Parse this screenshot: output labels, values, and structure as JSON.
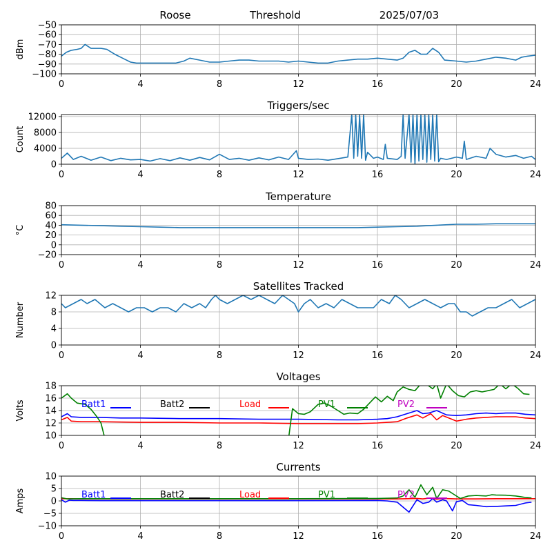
{
  "header": {
    "station": "Roose",
    "mode": "Threshold",
    "date": "2025/07/03"
  },
  "colors": {
    "series": "#1f77b4",
    "grid": "#b0b0b0",
    "batt1": "#0000ff",
    "batt2": "#000000",
    "load": "#ff0000",
    "pv1": "#008000",
    "pv2": "#bf00bf"
  },
  "chart_data": [
    {
      "id": "signal",
      "type": "line",
      "title": "",
      "xlabel": "",
      "ylabel": "dBm",
      "xlim": [
        0,
        24
      ],
      "ylim": [
        -100,
        -50
      ],
      "xticks": [
        "0",
        "4",
        "8",
        "12",
        "16",
        "20",
        "24"
      ],
      "yticks": [
        "−100",
        "−90",
        "−80",
        "−70",
        "−60",
        "−50"
      ],
      "grid": true,
      "series": [
        {
          "color": "#1f77b4",
          "x": [
            0,
            0.25,
            0.5,
            0.8,
            1.0,
            1.2,
            1.5,
            2.0,
            2.3,
            2.7,
            3.1,
            3.5,
            3.8,
            4.2,
            5.0,
            5.8,
            6.2,
            6.5,
            7.0,
            7.5,
            8.0,
            8.5,
            9.0,
            9.5,
            10.0,
            10.5,
            11.0,
            11.5,
            12.0,
            12.5,
            13.0,
            13.5,
            14.0,
            14.5,
            15.0,
            15.5,
            16.0,
            16.5,
            17.0,
            17.3,
            17.6,
            17.9,
            18.2,
            18.5,
            18.8,
            19.1,
            19.4,
            20.0,
            20.5,
            21.0,
            21.5,
            22.0,
            22.5,
            23.0,
            23.3,
            23.6,
            24.0
          ],
          "y": [
            -82,
            -78,
            -76,
            -75,
            -74,
            -70,
            -74,
            -74,
            -75,
            -80,
            -84,
            -88,
            -89,
            -89,
            -89,
            -89,
            -87,
            -84,
            -86,
            -88,
            -88,
            -87,
            -86,
            -86,
            -87,
            -87,
            -87,
            -88,
            -87,
            -88,
            -89,
            -89,
            -87,
            -86,
            -85,
            -85,
            -84,
            -85,
            -86,
            -84,
            -78,
            -76,
            -80,
            -80,
            -74,
            -78,
            -86,
            -87,
            -88,
            -87,
            -85,
            -83,
            -84,
            -86,
            -83,
            -82,
            -81
          ]
        }
      ]
    },
    {
      "id": "triggers",
      "type": "line",
      "title": "Triggers/sec",
      "xlabel": "",
      "ylabel": "Count",
      "xlim": [
        0,
        24
      ],
      "ylim": [
        0,
        12500
      ],
      "xticks": [
        "0",
        "4",
        "8",
        "12",
        "16",
        "20",
        "24"
      ],
      "yticks": [
        "0",
        "4000",
        "8000",
        "12000"
      ],
      "grid": true,
      "series": [
        {
          "color": "#1f77b4",
          "x": [
            0,
            0.3,
            0.6,
            1.0,
            1.5,
            2.0,
            2.5,
            3.0,
            3.5,
            4.0,
            4.5,
            5.0,
            5.5,
            6.0,
            6.5,
            7.0,
            7.5,
            8.0,
            8.5,
            9.0,
            9.5,
            10.0,
            10.5,
            11.0,
            11.5,
            11.9,
            12.0,
            12.5,
            13.0,
            13.5,
            14.0,
            14.5,
            14.7,
            14.8,
            14.9,
            15.0,
            15.1,
            15.2,
            15.3,
            15.4,
            15.5,
            15.8,
            16.0,
            16.3,
            16.4,
            16.5,
            17.0,
            17.2,
            17.3,
            17.4,
            17.6,
            17.7,
            17.8,
            17.9,
            18.0,
            18.1,
            18.2,
            18.3,
            18.4,
            18.5,
            18.6,
            18.7,
            18.8,
            18.9,
            19.0,
            19.1,
            19.2,
            19.5,
            20.0,
            20.3,
            20.4,
            20.5,
            21.0,
            21.5,
            21.7,
            22.0,
            22.5,
            23.0,
            23.4,
            23.8,
            24.0
          ],
          "y": [
            1500,
            2800,
            1200,
            2000,
            1000,
            1800,
            900,
            1500,
            1100,
            1200,
            800,
            1400,
            900,
            1600,
            1000,
            1700,
            1100,
            2500,
            1200,
            1500,
            1000,
            1600,
            1100,
            1800,
            1200,
            3400,
            1500,
            1200,
            1300,
            1000,
            1400,
            1800,
            12500,
            1500,
            12500,
            2000,
            12500,
            1500,
            12500,
            1000,
            3000,
            1500,
            1800,
            1200,
            5000,
            1500,
            1200,
            2000,
            12500,
            1500,
            12500,
            500,
            12500,
            0,
            12500,
            800,
            12500,
            1200,
            12500,
            500,
            12500,
            1200,
            12500,
            800,
            12500,
            600,
            1500,
            1200,
            1800,
            1500,
            5800,
            1200,
            2000,
            1500,
            4000,
            2500,
            1800,
            2200,
            1500,
            2000,
            1200
          ]
        }
      ]
    },
    {
      "id": "temperature",
      "type": "line",
      "title": "Temperature",
      "xlabel": "",
      "ylabel": "°C",
      "xlim": [
        0,
        24
      ],
      "ylim": [
        -20,
        80
      ],
      "xticks": [
        "0",
        "4",
        "8",
        "12",
        "16",
        "20",
        "24"
      ],
      "yticks": [
        "−20",
        "0",
        "20",
        "40",
        "60",
        "80"
      ],
      "grid": true,
      "series": [
        {
          "color": "#1f77b4",
          "x": [
            0,
            1,
            2,
            3,
            4,
            5,
            6,
            8,
            10,
            12,
            14,
            15,
            16,
            17,
            18,
            19,
            20,
            21,
            22,
            23,
            24
          ],
          "y": [
            41,
            40,
            39,
            38,
            37,
            36,
            35,
            35,
            35,
            35,
            35,
            35,
            36,
            37,
            38,
            40,
            42,
            42,
            43,
            43,
            43
          ]
        }
      ]
    },
    {
      "id": "satellites",
      "type": "line",
      "title": "Satellites Tracked",
      "xlabel": "",
      "ylabel": "Number",
      "xlim": [
        0,
        24
      ],
      "ylim": [
        0,
        12
      ],
      "xticks": [
        "0",
        "4",
        "8",
        "12",
        "16",
        "20",
        "24"
      ],
      "yticks": [
        "0",
        "4",
        "8",
        "12"
      ],
      "grid": true,
      "series": [
        {
          "color": "#1f77b4",
          "x": [
            0,
            0.2,
            0.6,
            1.0,
            1.3,
            1.7,
            2.2,
            2.6,
            3.0,
            3.4,
            3.8,
            4.2,
            4.6,
            5.0,
            5.4,
            5.8,
            6.2,
            6.6,
            7.0,
            7.3,
            7.6,
            7.8,
            8.0,
            8.4,
            8.8,
            9.2,
            9.6,
            10.0,
            10.4,
            10.8,
            11.2,
            11.5,
            11.8,
            12.0,
            12.3,
            12.6,
            13.0,
            13.4,
            13.8,
            14.2,
            14.6,
            15.0,
            15.4,
            15.8,
            16.2,
            16.6,
            16.9,
            17.2,
            17.6,
            18.0,
            18.4,
            18.8,
            19.2,
            19.6,
            19.9,
            20.2,
            20.5,
            20.8,
            21.2,
            21.6,
            22.0,
            22.4,
            22.8,
            23.2,
            23.6,
            24.0
          ],
          "y": [
            10,
            9,
            10,
            11,
            10,
            11,
            9,
            10,
            9,
            8,
            9,
            9,
            8,
            9,
            9,
            8,
            10,
            9,
            10,
            9,
            11,
            12,
            11,
            10,
            11,
            12,
            11,
            12,
            11,
            10,
            12,
            11,
            10,
            8,
            10,
            11,
            9,
            10,
            9,
            11,
            10,
            9,
            9,
            9,
            11,
            10,
            12,
            11,
            9,
            10,
            11,
            10,
            9,
            10,
            10,
            8,
            8,
            7,
            8,
            9,
            9,
            10,
            11,
            9,
            10,
            11
          ]
        }
      ]
    },
    {
      "id": "voltages",
      "type": "line",
      "title": "Voltages",
      "xlabel": "",
      "ylabel": "Volts",
      "xlim": [
        0,
        24
      ],
      "ylim": [
        10,
        18
      ],
      "xticks": [
        "0",
        "4",
        "8",
        "12",
        "16",
        "20",
        "24"
      ],
      "yticks": [
        "10",
        "12",
        "14",
        "16",
        "18"
      ],
      "grid": true,
      "legend": [
        "Batt1",
        "Batt2",
        "Load",
        "PV1",
        "PV2"
      ],
      "series": [
        {
          "name": "Batt1",
          "color": "#0000ff",
          "x": [
            0,
            0.3,
            0.5,
            1.0,
            2.0,
            3.0,
            4.0,
            6.0,
            8.0,
            10.0,
            12.0,
            14.0,
            15.0,
            16.0,
            16.5,
            17.0,
            17.5,
            18.0,
            18.3,
            18.6,
            19.0,
            19.5,
            20.0,
            20.5,
            21.0,
            21.5,
            22.0,
            22.5,
            23.0,
            23.5,
            24.0
          ],
          "y": [
            13.0,
            13.5,
            13.0,
            12.9,
            12.9,
            12.8,
            12.8,
            12.7,
            12.7,
            12.6,
            12.6,
            12.5,
            12.5,
            12.6,
            12.7,
            13.0,
            13.5,
            14.0,
            13.5,
            13.6,
            14.0,
            13.3,
            13.2,
            13.3,
            13.5,
            13.6,
            13.5,
            13.6,
            13.6,
            13.4,
            13.3
          ]
        },
        {
          "name": "Batt2",
          "color": "#000000",
          "x": [],
          "y": []
        },
        {
          "name": "Load",
          "color": "#ff0000",
          "x": [
            0,
            0.3,
            0.5,
            1.0,
            2.0,
            4.0,
            6.0,
            8.0,
            10.0,
            12.0,
            14.0,
            15.0,
            16.0,
            16.5,
            17.0,
            17.5,
            18.0,
            18.3,
            18.7,
            19.0,
            19.3,
            20.0,
            20.5,
            21.0,
            21.5,
            22.0,
            22.5,
            23.0,
            23.5,
            24.0
          ],
          "y": [
            12.5,
            12.9,
            12.3,
            12.2,
            12.2,
            12.1,
            12.1,
            12.0,
            12.0,
            11.9,
            11.9,
            11.9,
            12.0,
            12.1,
            12.2,
            12.8,
            13.3,
            12.8,
            13.5,
            12.5,
            13.2,
            12.3,
            12.6,
            12.8,
            12.9,
            13.0,
            13.0,
            13.0,
            12.8,
            12.7
          ]
        },
        {
          "name": "PV1",
          "color": "#008000",
          "x": [
            0,
            0.3,
            0.5,
            0.8,
            1.2,
            1.5,
            1.8,
            2.0,
            2.2,
            11.5,
            11.7,
            12.0,
            12.3,
            12.6,
            13.0,
            13.3,
            13.6,
            14.0,
            14.3,
            14.6,
            15.0,
            15.3,
            15.6,
            15.9,
            16.2,
            16.5,
            16.8,
            17.0,
            17.3,
            17.6,
            17.9,
            18.2,
            18.5,
            18.8,
            19.0,
            19.2,
            19.5,
            19.8,
            20.1,
            20.4,
            20.7,
            21.0,
            21.3,
            21.6,
            21.9,
            22.2,
            22.5,
            22.8,
            23.1,
            23.4,
            23.7
          ],
          "y": [
            16.0,
            16.7,
            16.0,
            15.2,
            15.0,
            14.2,
            13.0,
            12.0,
            9.5,
            9.5,
            14.3,
            13.5,
            13.4,
            13.8,
            15.0,
            15.2,
            14.8,
            14.0,
            13.4,
            13.6,
            13.5,
            14.2,
            15.2,
            16.2,
            15.4,
            16.3,
            15.6,
            17.0,
            17.8,
            17.4,
            17.2,
            18.3,
            18.2,
            17.5,
            18.3,
            16.0,
            18.3,
            17.2,
            16.4,
            16.2,
            17.0,
            17.2,
            17.0,
            17.2,
            17.4,
            18.3,
            17.5,
            18.3,
            17.6,
            16.7,
            16.6
          ]
        },
        {
          "name": "PV2",
          "color": "#bf00bf",
          "x": [],
          "y": []
        }
      ]
    },
    {
      "id": "currents",
      "type": "line",
      "title": "Currents",
      "xlabel": "",
      "ylabel": "Amps",
      "xlim": [
        0,
        24
      ],
      "ylim": [
        -10,
        10
      ],
      "xticks": [
        "0",
        "4",
        "8",
        "12",
        "16",
        "20",
        "24"
      ],
      "yticks": [
        "−10",
        "−5",
        "0",
        "5",
        "10"
      ],
      "grid": true,
      "legend": [
        "Batt1",
        "Batt2",
        "Load",
        "PV1",
        "PV2"
      ],
      "series": [
        {
          "name": "Batt1",
          "color": "#0000ff",
          "x": [
            0,
            0.2,
            0.4,
            0.6,
            1.0,
            2.0,
            4.0,
            8.0,
            12.0,
            16.0,
            16.5,
            17.0,
            17.3,
            17.6,
            17.8,
            18.0,
            18.3,
            18.6,
            18.8,
            19.0,
            19.3,
            19.5,
            19.8,
            20.0,
            20.3,
            20.6,
            21.0,
            21.5,
            22.0,
            22.5,
            23.0,
            23.5,
            23.8
          ],
          "y": [
            0.5,
            -0.5,
            0.3,
            0.2,
            0.2,
            0.1,
            0.1,
            0.1,
            0.1,
            0.2,
            0.0,
            -0.5,
            -2.5,
            -4.5,
            -2.0,
            0.5,
            -1.0,
            -0.5,
            1.0,
            -0.5,
            0.5,
            0.0,
            -4.0,
            -0.3,
            0.2,
            -1.5,
            -1.8,
            -2.3,
            -2.2,
            -2.0,
            -1.8,
            -0.8,
            -0.5
          ]
        },
        {
          "name": "Batt2",
          "color": "#000000",
          "x": [],
          "y": []
        },
        {
          "name": "Load",
          "color": "#ff0000",
          "x": [
            0,
            0.5,
            1.0,
            4.0,
            8.0,
            12.0,
            16.0,
            16.5,
            17.0,
            17.5,
            18.0,
            18.3,
            18.7,
            19.0,
            19.3,
            20.0,
            21.0,
            22.0,
            23.0,
            24.0
          ],
          "y": [
            0.9,
            0.9,
            0.8,
            0.8,
            0.8,
            0.8,
            0.8,
            0.8,
            0.8,
            0.9,
            1.0,
            0.8,
            1.2,
            0.7,
            1.0,
            0.8,
            0.8,
            0.9,
            0.9,
            0.9
          ]
        },
        {
          "name": "PV1",
          "color": "#008000",
          "x": [
            0,
            0.3,
            1.0,
            4.0,
            8.0,
            12.0,
            16.0,
            17.0,
            17.3,
            17.6,
            17.9,
            18.2,
            18.5,
            18.8,
            19.0,
            19.3,
            19.6,
            19.9,
            20.2,
            20.6,
            21.0,
            21.5,
            21.8,
            22.0,
            22.5,
            23.0,
            23.4,
            23.8
          ],
          "y": [
            1.3,
            0.8,
            0.9,
            0.9,
            0.9,
            0.9,
            1.0,
            1.2,
            2.0,
            4.5,
            1.5,
            6.5,
            2.5,
            5.5,
            1.0,
            4.5,
            4.0,
            2.5,
            1.0,
            2.0,
            2.2,
            2.0,
            2.5,
            2.4,
            2.3,
            2.0,
            1.5,
            1.2
          ]
        },
        {
          "name": "PV2",
          "color": "#bf00bf",
          "x": [],
          "y": []
        }
      ]
    }
  ]
}
